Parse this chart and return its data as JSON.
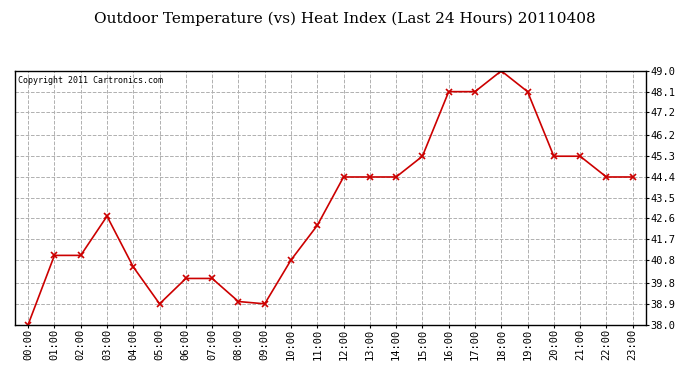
{
  "title": "Outdoor Temperature (vs) Heat Index (Last 24 Hours) 20110408",
  "copyright": "Copyright 2011 Cartronics.com",
  "x_labels": [
    "00:00",
    "01:00",
    "02:00",
    "03:00",
    "04:00",
    "05:00",
    "06:00",
    "07:00",
    "08:00",
    "09:00",
    "10:00",
    "11:00",
    "12:00",
    "13:00",
    "14:00",
    "15:00",
    "16:00",
    "17:00",
    "18:00",
    "19:00",
    "20:00",
    "21:00",
    "22:00",
    "23:00"
  ],
  "y_values": [
    38.0,
    41.0,
    41.0,
    42.7,
    40.5,
    38.9,
    40.0,
    40.0,
    39.0,
    38.9,
    40.8,
    42.3,
    44.4,
    44.4,
    44.4,
    45.3,
    48.1,
    48.1,
    49.0,
    48.1,
    45.3,
    45.3,
    44.4,
    44.4
  ],
  "line_color": "#cc0000",
  "marker": "x",
  "marker_color": "#cc0000",
  "ylim_min": 38.0,
  "ylim_max": 49.0,
  "yticks": [
    38.0,
    38.9,
    39.8,
    40.8,
    41.7,
    42.6,
    43.5,
    44.4,
    45.3,
    46.2,
    47.2,
    48.1,
    49.0
  ],
  "bg_color": "#ffffff",
  "plot_bg_color": "#ffffff",
  "grid_color": "#b0b0b0",
  "title_fontsize": 11,
  "copyright_fontsize": 6,
  "tick_fontsize": 7.5
}
